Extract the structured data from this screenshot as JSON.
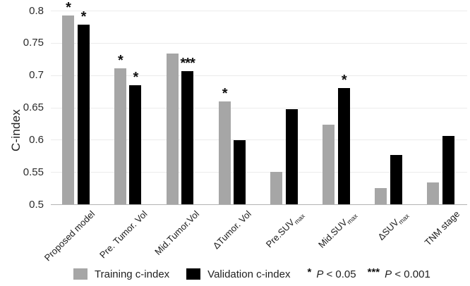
{
  "chart_data": {
    "type": "bar",
    "title": "",
    "xlabel": "",
    "ylabel": "C-index",
    "ylim": [
      0.5,
      0.8
    ],
    "grid": true,
    "legend_position": "bottom",
    "y_ticks": [
      "0.8",
      "0.75",
      "0.7",
      "0.65",
      "0.6",
      "0.55",
      "0.5"
    ],
    "categories": [
      {
        "label": "Proposed model",
        "sub": ""
      },
      {
        "label": "Pre. Tumor. Vol",
        "sub": ""
      },
      {
        "label": "Mid.Tumor.Vol",
        "sub": ""
      },
      {
        "label": "ΔTumor. Vol",
        "sub": ""
      },
      {
        "label": "Pre.SUV",
        "sub": "max"
      },
      {
        "label": "Mid.SUV",
        "sub": "max"
      },
      {
        "label": "ΔSUV",
        "sub": "max"
      },
      {
        "label": "TNM stage",
        "sub": ""
      }
    ],
    "series": [
      {
        "name": "Training c-index",
        "color": "#a6a6a6",
        "values": [
          0.792,
          0.711,
          0.733,
          0.659,
          0.55,
          0.623,
          0.525,
          0.534
        ],
        "significance": [
          "*",
          "*",
          "",
          "*",
          "",
          "",
          "",
          ""
        ]
      },
      {
        "name": "Validation c-index",
        "color": "#000000",
        "values": [
          0.778,
          0.684,
          0.706,
          0.599,
          0.647,
          0.68,
          0.576,
          0.606
        ],
        "significance": [
          "*",
          "*",
          "***",
          "",
          "",
          "*",
          "",
          ""
        ]
      }
    ],
    "annotations": [
      {
        "symbol": "*",
        "p_italic": "P",
        "p_rest": "< 0.05"
      },
      {
        "symbol": "***",
        "p_italic": "P",
        "p_rest": "< 0.001"
      }
    ]
  }
}
